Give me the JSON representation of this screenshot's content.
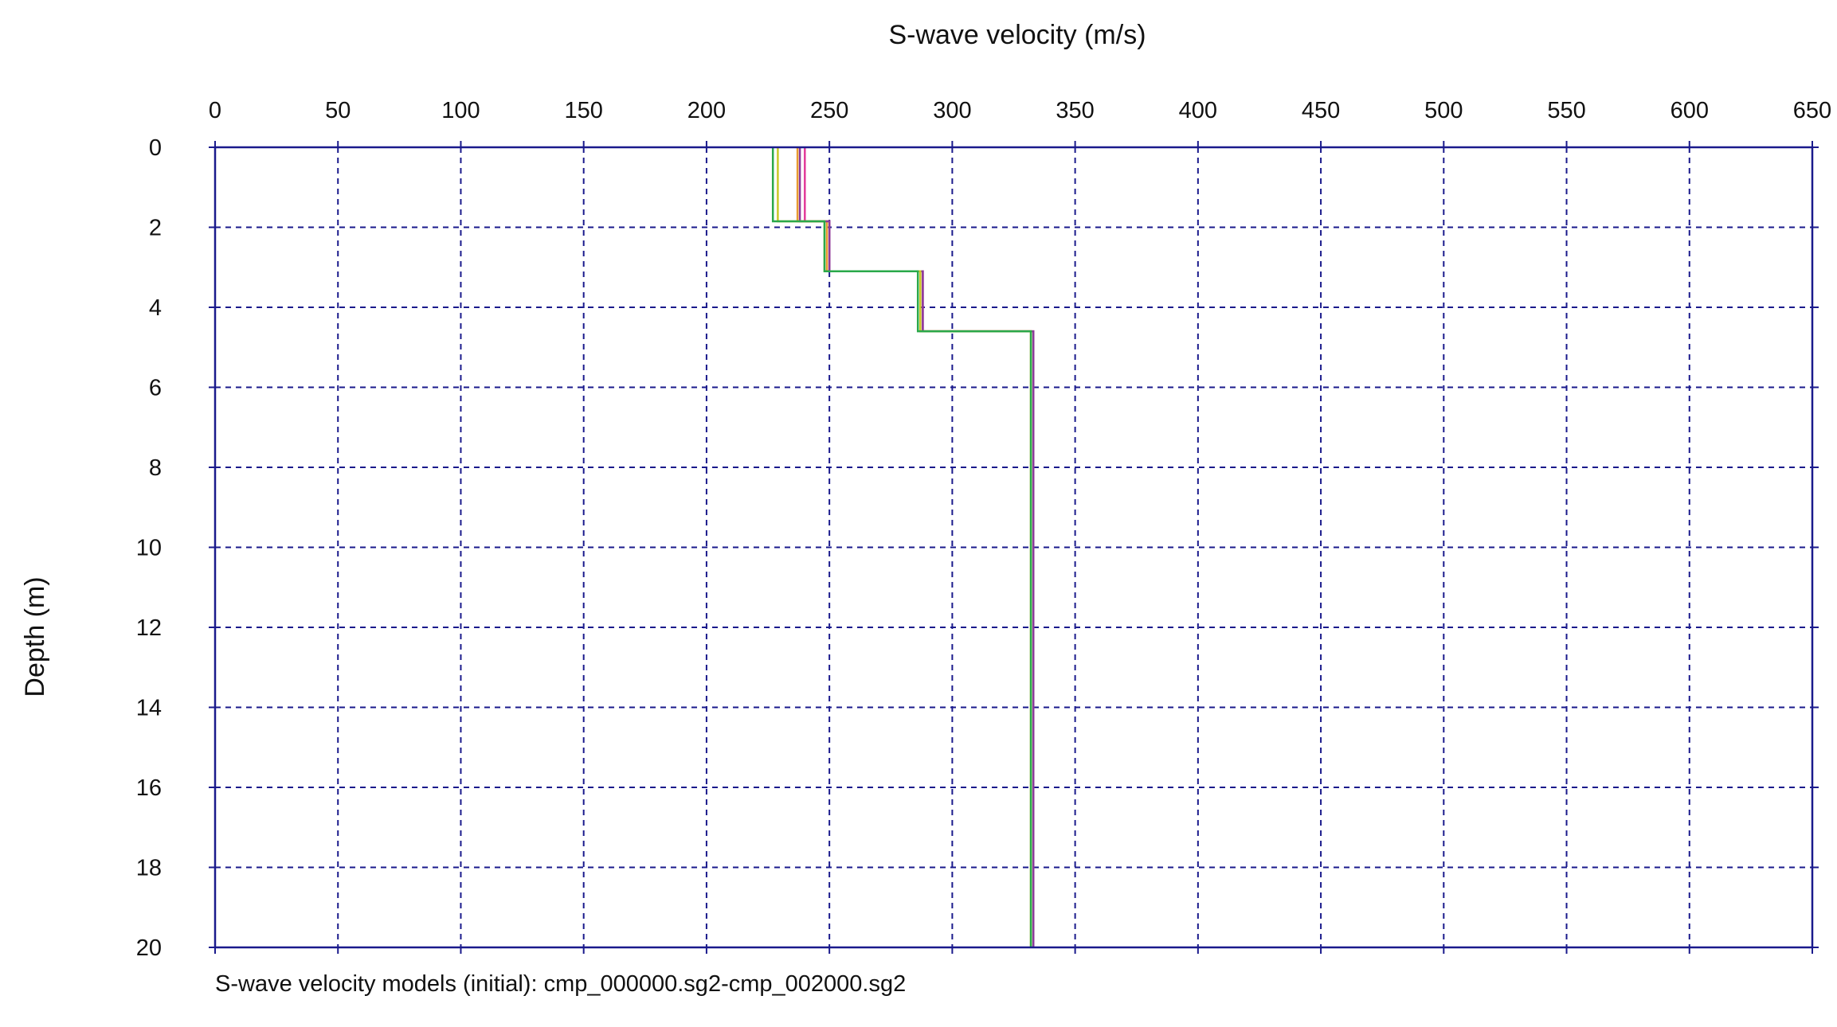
{
  "chart_data": {
    "type": "line",
    "title": "",
    "xlabel": "S-wave velocity (m/s)",
    "ylabel": "Depth (m)",
    "caption": "S-wave velocity models (initial): cmp_000000.sg2-cmp_002000.sg2",
    "xlim": [
      0,
      650
    ],
    "ylim": [
      0,
      20
    ],
    "x_axis_position": "top",
    "y_axis_inverted": true,
    "x_ticks": [
      0,
      50,
      100,
      150,
      200,
      250,
      300,
      350,
      400,
      450,
      500,
      550,
      600,
      650
    ],
    "y_ticks": [
      0,
      2,
      4,
      6,
      8,
      10,
      12,
      14,
      16,
      18,
      20
    ],
    "grid": true,
    "grid_style": "dashed",
    "colors": {
      "frame": "#1a1a8c",
      "grid": "#1a1a8c",
      "tick": "#1a1a8c"
    },
    "series": [
      {
        "color": "#e23a9a",
        "points": [
          [
            240,
            0
          ],
          [
            240,
            1.85
          ],
          [
            250,
            1.85
          ],
          [
            250,
            3.1
          ],
          [
            288,
            3.1
          ],
          [
            288,
            4.6
          ],
          [
            333,
            4.6
          ],
          [
            333,
            20
          ]
        ]
      },
      {
        "color": "#e89a30",
        "points": [
          [
            237,
            0
          ],
          [
            237,
            1.85
          ],
          [
            249,
            1.85
          ],
          [
            249,
            3.1
          ],
          [
            287,
            3.1
          ],
          [
            287,
            4.6
          ],
          [
            332,
            4.6
          ],
          [
            332,
            20
          ]
        ]
      },
      {
        "color": "#8a3a9a",
        "points": [
          [
            238,
            0
          ],
          [
            238,
            1.85
          ],
          [
            250,
            1.85
          ],
          [
            250,
            3.1
          ],
          [
            288,
            3.1
          ],
          [
            288,
            4.6
          ],
          [
            333,
            4.6
          ],
          [
            333,
            20
          ]
        ]
      },
      {
        "color": "#c8c828",
        "points": [
          [
            229,
            0
          ],
          [
            229,
            1.85
          ],
          [
            248,
            1.85
          ],
          [
            248,
            3.1
          ],
          [
            287,
            3.1
          ],
          [
            287,
            4.6
          ],
          [
            332,
            4.6
          ],
          [
            332,
            20
          ]
        ]
      },
      {
        "color": "#2aa84a",
        "points": [
          [
            227,
            0
          ],
          [
            227,
            1.85
          ],
          [
            248,
            1.85
          ],
          [
            248,
            3.1
          ],
          [
            286,
            3.1
          ],
          [
            286,
            4.6
          ],
          [
            332,
            4.6
          ],
          [
            332,
            20
          ]
        ]
      }
    ]
  }
}
